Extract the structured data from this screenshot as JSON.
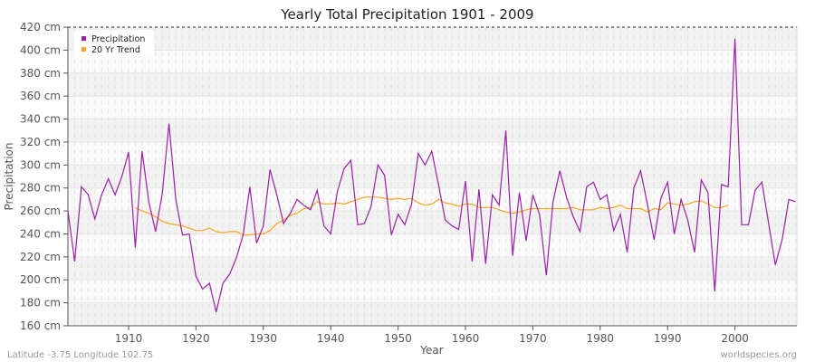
{
  "chart_data": {
    "type": "line",
    "title": "Yearly Total Precipitation 1901 - 2009",
    "xlabel": "Year",
    "ylabel": "Precipitation",
    "xlim": [
      1901,
      2009
    ],
    "ylim": [
      160,
      420
    ],
    "y_unit": "cm",
    "x_ticks": [
      1910,
      1920,
      1930,
      1940,
      1950,
      1960,
      1970,
      1980,
      1990,
      2000
    ],
    "y_ticks": [
      160,
      180,
      200,
      220,
      240,
      260,
      280,
      300,
      320,
      340,
      360,
      380,
      400,
      420
    ],
    "y_tick_labels": [
      "160 cm",
      "180 cm",
      "200 cm",
      "220 cm",
      "240 cm",
      "260 cm",
      "280 cm",
      "300 cm",
      "320 cm",
      "340 cm",
      "360 cm",
      "380 cm",
      "400 cm",
      "420 cm"
    ],
    "grid": true,
    "legend_position": "top-left",
    "series": [
      {
        "name": "Precipitation",
        "color": "#9b1fa8",
        "x_start": 1901,
        "values": [
          260,
          216,
          281,
          274,
          253,
          274,
          288,
          274,
          290,
          311,
          228,
          312,
          268,
          242,
          275,
          336,
          270,
          239,
          240,
          203,
          192,
          197,
          172,
          197,
          205,
          219,
          239,
          281,
          232,
          247,
          296,
          274,
          249,
          258,
          270,
          265,
          261,
          278,
          247,
          240,
          277,
          297,
          304,
          248,
          249,
          264,
          300,
          291,
          239,
          257,
          248,
          266,
          310,
          300,
          312,
          283,
          252,
          247,
          244,
          286,
          216,
          279,
          214,
          274,
          265,
          330,
          221,
          276,
          234,
          274,
          257,
          204,
          268,
          295,
          272,
          255,
          242,
          281,
          285,
          270,
          274,
          243,
          257,
          224,
          280,
          295,
          266,
          235,
          271,
          285,
          240,
          270,
          252,
          224,
          287,
          276,
          190,
          283,
          281,
          410,
          248,
          248,
          278,
          285,
          249,
          213,
          235,
          270,
          268
        ]
      },
      {
        "name": "20 Yr Trend",
        "color": "#f5a623",
        "x_start": 1911,
        "values": [
          263,
          260,
          258,
          255,
          251,
          249,
          248,
          247,
          245,
          243,
          243,
          245,
          242,
          241,
          242,
          242,
          239,
          239,
          240,
          240,
          243,
          249,
          252,
          256,
          258,
          262,
          263,
          268,
          266,
          266,
          267,
          266,
          268,
          270,
          272,
          272,
          272,
          271,
          270,
          271,
          270,
          271,
          267,
          265,
          266,
          270,
          267,
          266,
          264,
          266,
          266,
          263,
          263,
          263,
          261,
          259,
          258,
          259,
          261,
          262,
          262,
          262,
          262,
          262,
          262,
          263,
          261,
          261,
          261,
          263,
          262,
          263,
          265,
          262,
          262,
          262,
          259,
          262,
          261,
          267,
          266,
          265,
          266,
          268,
          269,
          266,
          263,
          263,
          265
        ]
      }
    ]
  },
  "footer": {
    "location": "Latitude -3.75 Longitude 102.75",
    "source": "worldspecies.org"
  }
}
